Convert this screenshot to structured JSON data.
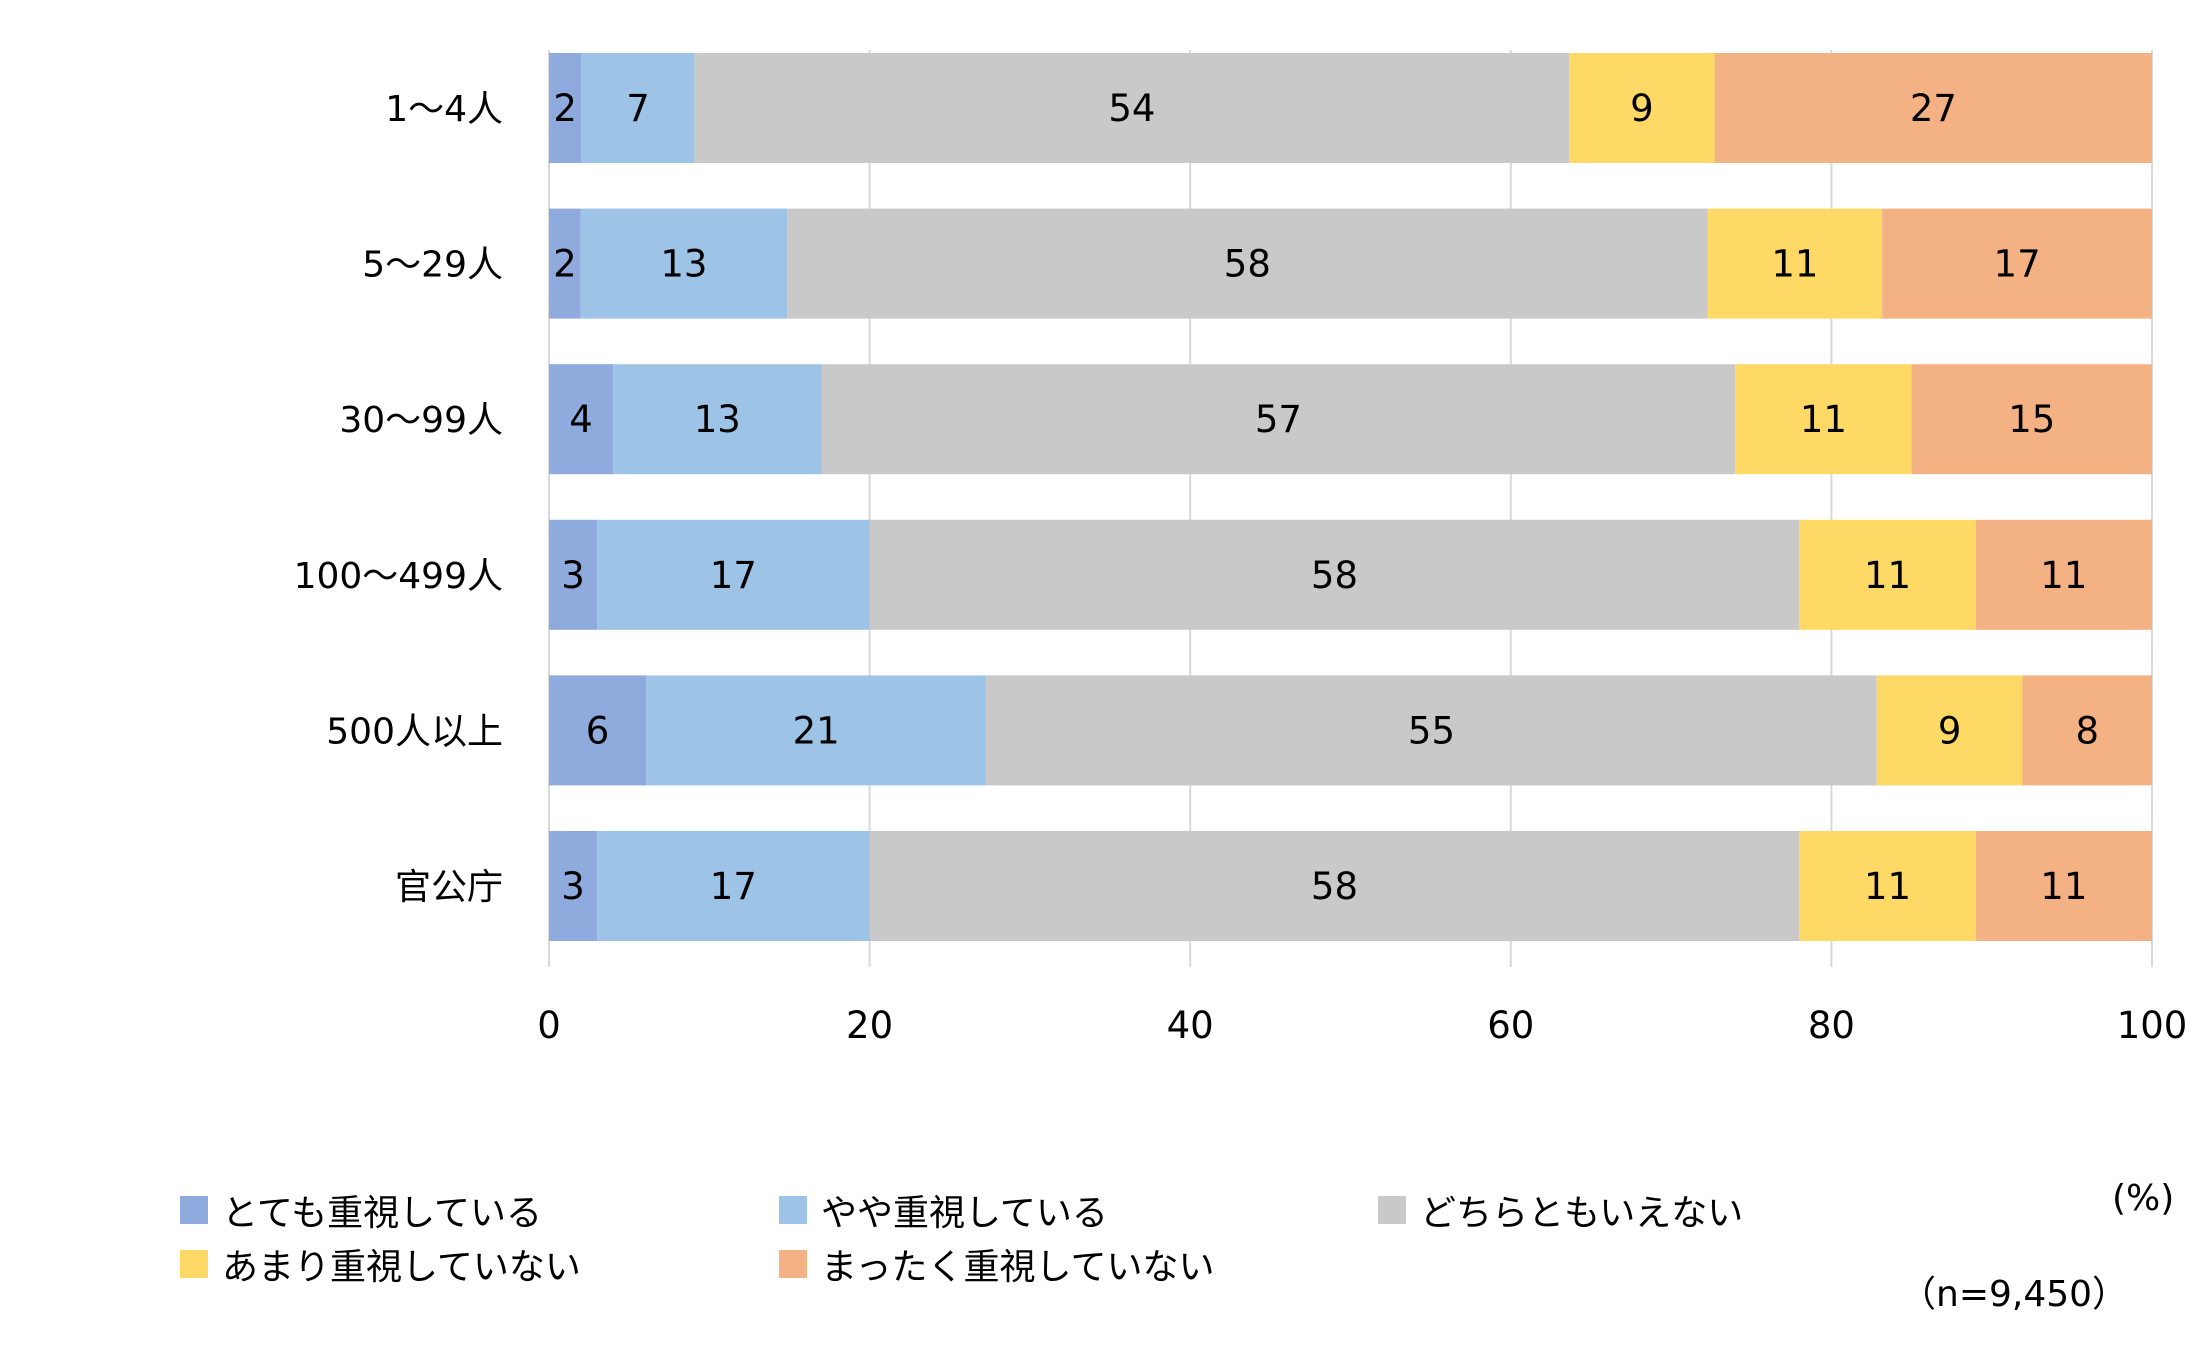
{
  "chart_data": {
    "type": "bar",
    "orientation": "horizontal",
    "stacked": true,
    "categories": [
      "1〜4人",
      "5〜29人",
      "30〜99人",
      "100〜499人",
      "500人以上",
      "官公庁"
    ],
    "series": [
      {
        "name": "とても重視している",
        "color": "#8FAADC",
        "values": [
          2,
          2,
          4,
          3,
          6,
          3
        ]
      },
      {
        "name": "やや重視している",
        "color": "#9DC3E6",
        "values": [
          7,
          13,
          13,
          17,
          21,
          17
        ]
      },
      {
        "name": "どちらともいえない",
        "color": "#C9C9C9",
        "values": [
          54,
          58,
          57,
          58,
          55,
          58
        ]
      },
      {
        "name": "あまり重視していない",
        "color": "#FFD966",
        "values": [
          9,
          11,
          11,
          11,
          9,
          11
        ]
      },
      {
        "name": "まったく重視していない",
        "color": "#F4B183",
        "values": [
          27,
          17,
          15,
          11,
          8,
          11
        ]
      }
    ],
    "xlim": [
      0,
      100
    ],
    "xticks": [
      "0",
      "20",
      "40",
      "60",
      "80",
      "100"
    ],
    "grid": true,
    "legend_placement": "bottom",
    "unit_label": "(%)",
    "sample_label": "（n=9,450）"
  }
}
